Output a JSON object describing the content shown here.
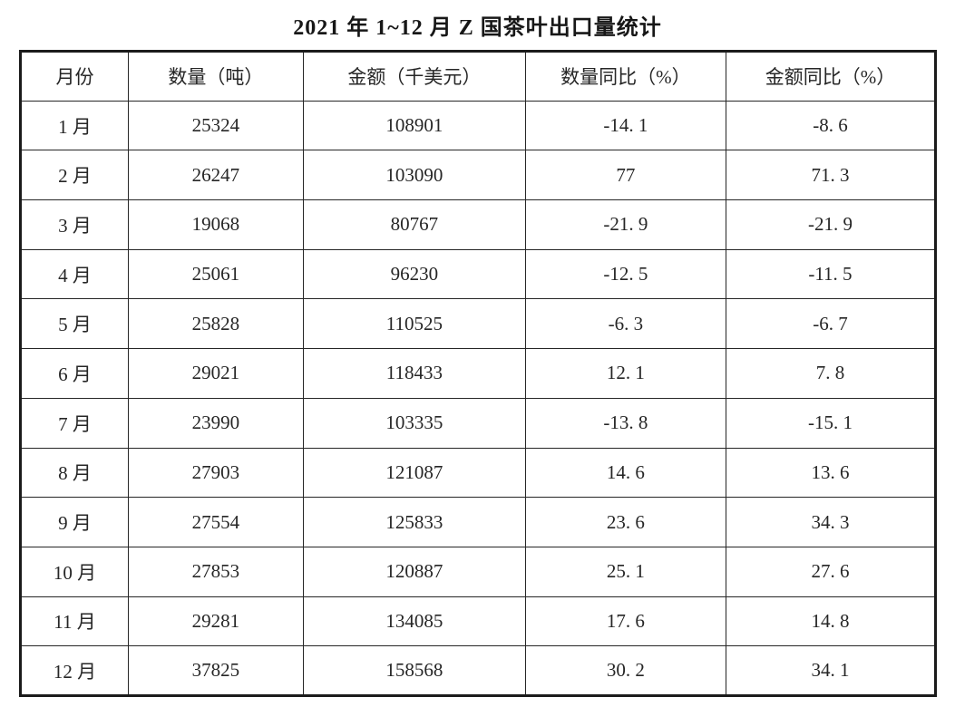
{
  "page": {
    "title": "2021 年 1~12 月 Z 国茶叶出口量统计"
  },
  "table": {
    "headers": [
      "月份",
      "数量（吨）",
      "金额（千美元）",
      "数量同比（%）",
      "金额同比（%）"
    ],
    "rows": [
      [
        "1 月",
        "25324",
        "108901",
        "-14. 1",
        "-8. 6"
      ],
      [
        "2 月",
        "26247",
        "103090",
        "77",
        "71. 3"
      ],
      [
        "3 月",
        "19068",
        "80767",
        "-21. 9",
        "-21. 9"
      ],
      [
        "4 月",
        "25061",
        "96230",
        "-12. 5",
        "-11. 5"
      ],
      [
        "5 月",
        "25828",
        "110525",
        "-6. 3",
        "-6. 7"
      ],
      [
        "6 月",
        "29021",
        "118433",
        "12. 1",
        "7. 8"
      ],
      [
        "7 月",
        "23990",
        "103335",
        "-13. 8",
        "-15. 1"
      ],
      [
        "8 月",
        "27903",
        "121087",
        "14. 6",
        "13. 6"
      ],
      [
        "9 月",
        "27554",
        "125833",
        "23. 6",
        "34. 3"
      ],
      [
        "10 月",
        "27853",
        "120887",
        "25. 1",
        "27. 6"
      ],
      [
        "11 月",
        "29281",
        "134085",
        "17. 6",
        "14. 8"
      ],
      [
        "12 月",
        "37825",
        "158568",
        "30. 2",
        "34. 1"
      ]
    ]
  },
  "chart_data": {
    "type": "table",
    "title": "2021 年 1~12 月 Z 国茶叶出口量统计",
    "columns": [
      "月份",
      "数量（吨）",
      "金额（千美元）",
      "数量同比（%）",
      "金额同比（%）"
    ],
    "months": [
      "1月",
      "2月",
      "3月",
      "4月",
      "5月",
      "6月",
      "7月",
      "8月",
      "9月",
      "10月",
      "11月",
      "12月"
    ],
    "quantity_tons": [
      25324,
      26247,
      19068,
      25061,
      25828,
      29021,
      23990,
      27903,
      27554,
      27853,
      29281,
      37825
    ],
    "amount_thousand_usd": [
      108901,
      103090,
      80767,
      96230,
      110525,
      118433,
      103335,
      121087,
      125833,
      120887,
      134085,
      158568
    ],
    "quantity_yoy_pct": [
      -14.1,
      77,
      -21.9,
      -12.5,
      -6.3,
      12.1,
      -13.8,
      14.6,
      23.6,
      25.1,
      17.6,
      30.2
    ],
    "amount_yoy_pct": [
      -8.6,
      71.3,
      -21.9,
      -11.5,
      -6.7,
      7.8,
      -15.1,
      13.6,
      34.3,
      27.6,
      14.8,
      34.1
    ]
  }
}
